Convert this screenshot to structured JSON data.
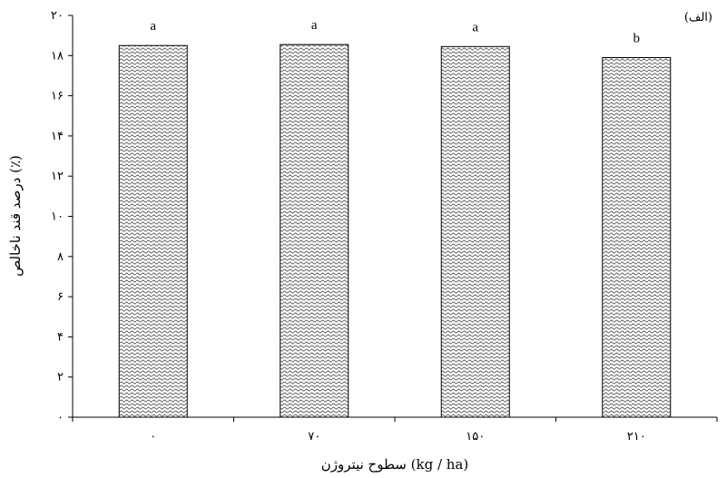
{
  "panel_label": "(الف)",
  "chart_data": {
    "type": "bar",
    "categories": [
      "۰",
      "۷۰",
      "۱۵۰",
      "۲۱۰"
    ],
    "values": [
      18.5,
      18.55,
      18.45,
      17.9
    ],
    "significance_letters": [
      "a",
      "a",
      "a",
      "b"
    ],
    "title": "",
    "xlabel": "سطوح نیتروژن (kg / ha)",
    "ylabel": "درصد قند ناخالص (٪)",
    "ylim": [
      0,
      20
    ],
    "yticks": [
      0,
      2,
      4,
      6,
      8,
      10,
      12,
      14,
      16,
      18,
      20
    ],
    "ytick_labels": [
      "۰",
      "۲",
      "۴",
      "۶",
      "۸",
      "۱۰",
      "۱۲",
      "۱۴",
      "۱۶",
      "۱۸",
      "۲۰"
    ],
    "grid": false,
    "legend": "none",
    "bar_fill": "#bdbdbd",
    "bar_pattern": "wavy-hatch"
  }
}
